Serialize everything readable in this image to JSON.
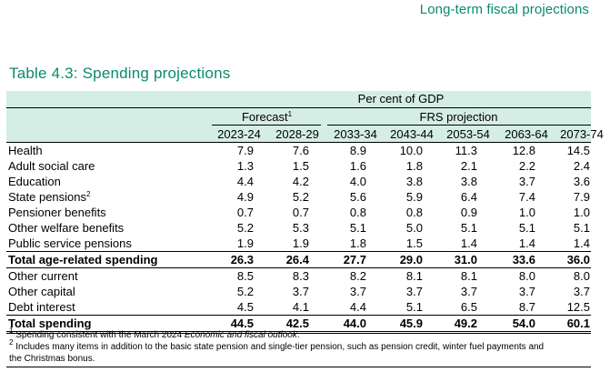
{
  "running_head": "Long-term fiscal projections",
  "table_title": "Table 4.3: Spending projections",
  "header": {
    "unit": "Per cent of GDP",
    "forecast": "Forecast",
    "forecast_note_mark": "1",
    "frs": "FRS projection",
    "years": [
      "2023-24",
      "2028-29",
      "2033-34",
      "2043-44",
      "2053-54",
      "2063-64",
      "2073-74"
    ]
  },
  "rows": [
    {
      "label": "Health",
      "note": "",
      "values": [
        "7.9",
        "7.6",
        "8.9",
        "10.0",
        "11.3",
        "12.8",
        "14.5"
      ]
    },
    {
      "label": "Adult social care",
      "note": "",
      "values": [
        "1.3",
        "1.5",
        "1.6",
        "1.8",
        "2.1",
        "2.2",
        "2.4"
      ]
    },
    {
      "label": "Education",
      "note": "",
      "values": [
        "4.4",
        "4.2",
        "4.0",
        "3.8",
        "3.8",
        "3.7",
        "3.6"
      ]
    },
    {
      "label": "State pensions",
      "note": "2",
      "values": [
        "4.9",
        "5.2",
        "5.6",
        "5.9",
        "6.4",
        "7.4",
        "7.9"
      ]
    },
    {
      "label": "Pensioner benefits",
      "note": "",
      "values": [
        "0.7",
        "0.7",
        "0.8",
        "0.8",
        "0.9",
        "1.0",
        "1.0"
      ]
    },
    {
      "label": "Other welfare benefits",
      "note": "",
      "values": [
        "5.2",
        "5.3",
        "5.1",
        "5.0",
        "5.1",
        "5.1",
        "5.1"
      ]
    },
    {
      "label": "Public service pensions",
      "note": "",
      "values": [
        "1.9",
        "1.9",
        "1.8",
        "1.5",
        "1.4",
        "1.4",
        "1.4"
      ]
    },
    {
      "label": "Total age-related spending",
      "note": "",
      "values": [
        "26.3",
        "26.4",
        "27.7",
        "29.0",
        "31.0",
        "33.6",
        "36.0"
      ]
    },
    {
      "label": "Other current",
      "note": "",
      "values": [
        "8.5",
        "8.3",
        "8.2",
        "8.1",
        "8.1",
        "8.0",
        "8.0"
      ]
    },
    {
      "label": "Other capital",
      "note": "",
      "values": [
        "5.2",
        "3.7",
        "3.7",
        "3.7",
        "3.7",
        "3.7",
        "3.7"
      ]
    },
    {
      "label": "Debt interest",
      "note": "",
      "values": [
        "4.5",
        "4.1",
        "4.4",
        "5.1",
        "6.5",
        "8.7",
        "12.5"
      ]
    },
    {
      "label": "Total spending",
      "note": "",
      "values": [
        "44.5",
        "42.5",
        "44.0",
        "45.9",
        "49.2",
        "54.0",
        "60.1"
      ]
    }
  ],
  "footnotes": {
    "n1_mark": "1",
    "n1_text_a": "Spending consistent with the March 2024 ",
    "n1_text_b": "Economic and fiscal outlook",
    "n1_text_c": ".",
    "n2_mark": "2",
    "n2_line1": "Includes many items in addition to the basic state pension and single-tier pension, such as pension credit, winter fuel payments and",
    "n2_line2": "the Christmas bonus."
  }
}
